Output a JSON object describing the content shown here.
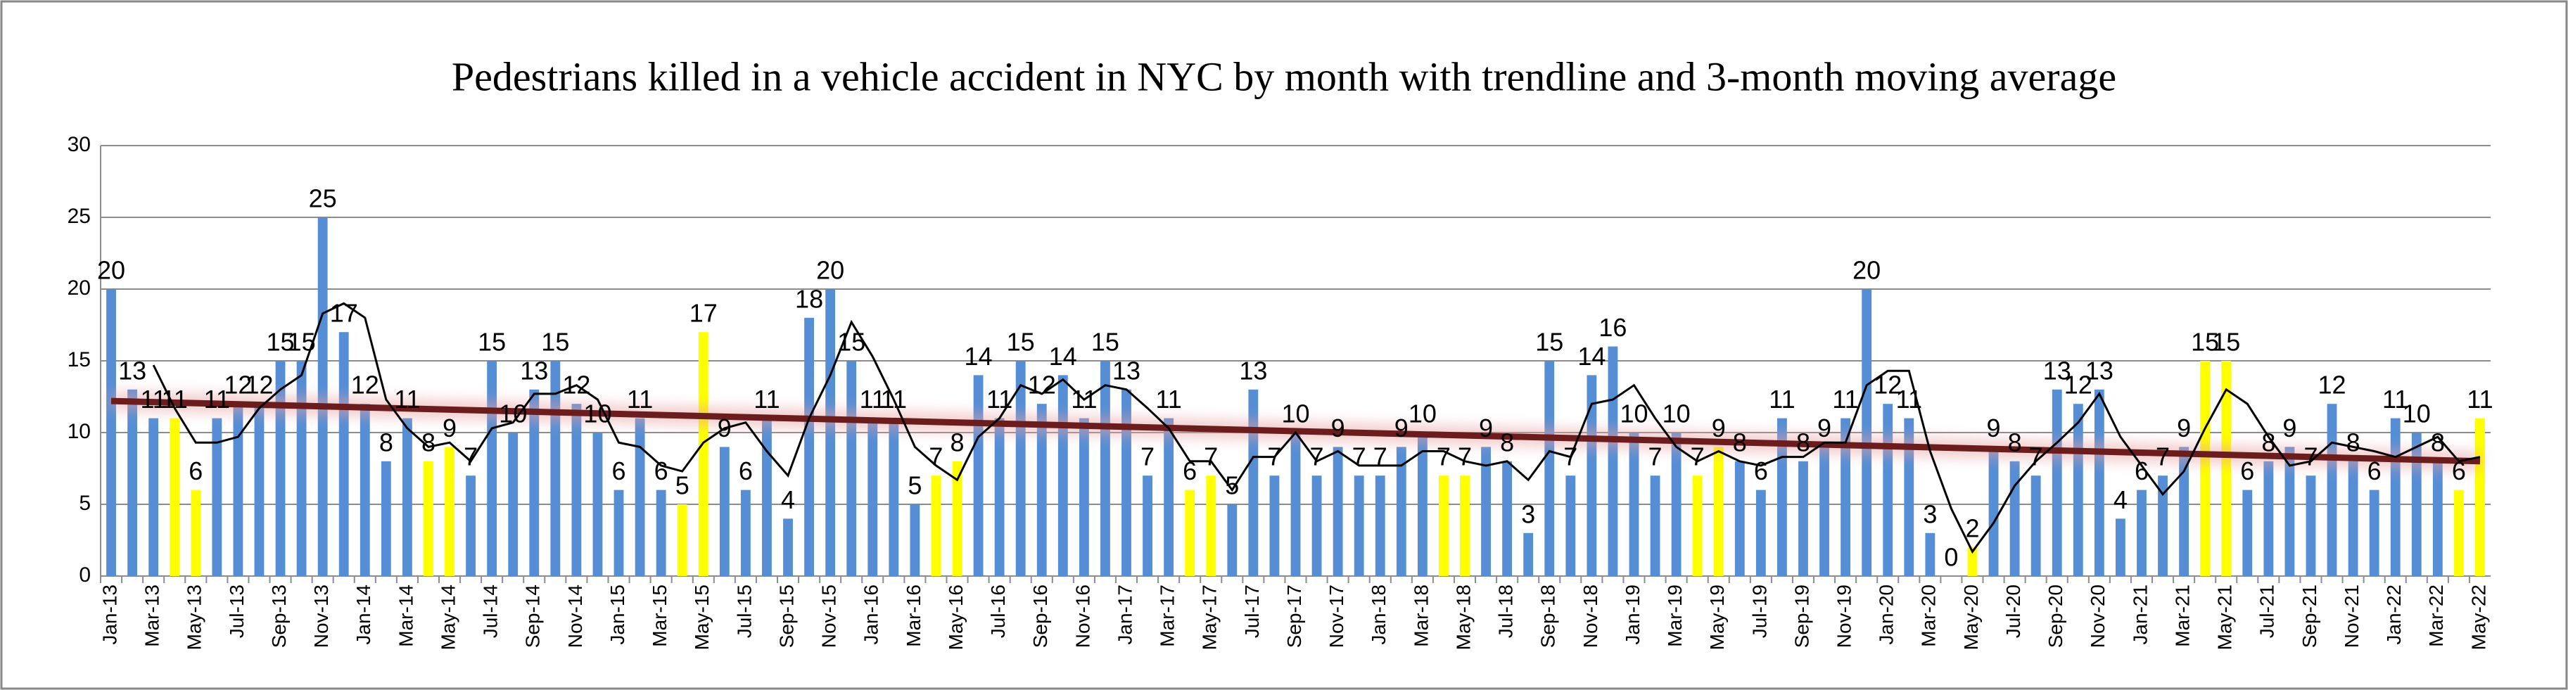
{
  "chart_data": {
    "type": "bar",
    "title": "Pedestrians killed in a vehicle accident  in NYC  by month with trendline and 3-month moving average",
    "categories": [
      "Jan-13",
      null,
      "Mar-13",
      null,
      "May-13",
      null,
      "Jul-13",
      null,
      "Sep-13",
      null,
      "Nov-13",
      null,
      "Jan-14",
      null,
      "Mar-14",
      null,
      "May-14",
      null,
      "Jul-14",
      null,
      "Sep-14",
      null,
      "Nov-14",
      null,
      "Jan-15",
      null,
      "Mar-15",
      null,
      "May-15",
      null,
      "Jul-15",
      null,
      "Sep-15",
      null,
      "Nov-15",
      null,
      "Jan-16",
      null,
      "Mar-16",
      null,
      "May-16",
      null,
      "Jul-16",
      null,
      "Sep-16",
      null,
      "Nov-16",
      null,
      "Jan-17",
      null,
      "Mar-17",
      null,
      "May-17",
      null,
      "Jul-17",
      null,
      "Sep-17",
      null,
      "Nov-17",
      null,
      "Jan-18",
      null,
      "Mar-18",
      null,
      "May-18",
      null,
      "Jul-18",
      null,
      "Sep-18",
      null,
      "Nov-18",
      null,
      "Jan-19",
      null,
      "Mar-19",
      null,
      "May-19",
      null,
      "Jul-19",
      null,
      "Sep-19",
      null,
      "Nov-19",
      null,
      "Jan-20",
      null,
      "Mar-20",
      null,
      "May-20",
      null,
      "Jul-20",
      null,
      "Sep-20",
      null,
      "Nov-20",
      null,
      "Jan-21",
      null,
      "Mar-21",
      null,
      "May-21",
      null,
      "Jul-21",
      null,
      "Sep-21",
      null,
      "Nov-21",
      null,
      "Jan-22",
      null,
      "Mar-22",
      null,
      "May-22"
    ],
    "values": [
      20,
      13,
      11,
      11,
      6,
      11,
      12,
      12,
      15,
      15,
      25,
      17,
      12,
      8,
      11,
      8,
      9,
      7,
      15,
      10,
      13,
      15,
      12,
      10,
      6,
      11,
      6,
      5,
      17,
      9,
      6,
      11,
      4,
      18,
      20,
      15,
      11,
      11,
      5,
      7,
      8,
      14,
      11,
      15,
      12,
      14,
      11,
      15,
      13,
      7,
      11,
      6,
      7,
      5,
      13,
      7,
      10,
      7,
      9,
      7,
      7,
      9,
      10,
      7,
      7,
      9,
      8,
      3,
      15,
      7,
      14,
      16,
      10,
      7,
      10,
      7,
      9,
      8,
      6,
      11,
      8,
      9,
      11,
      20,
      12,
      11,
      3,
      0,
      2,
      9,
      8,
      7,
      13,
      12,
      13,
      4,
      6,
      7,
      9,
      15,
      15,
      6,
      8,
      9,
      7,
      12,
      8,
      6,
      11,
      10,
      8,
      6,
      11
    ],
    "colors": [
      "#558ed5",
      "#558ed5",
      "#558ed5",
      "#ffff00",
      "#ffff00",
      "#558ed5",
      "#558ed5",
      "#558ed5",
      "#558ed5",
      "#558ed5",
      "#558ed5",
      "#558ed5",
      "#558ed5",
      "#558ed5",
      "#558ed5",
      "#ffff00",
      "#ffff00",
      "#558ed5",
      "#558ed5",
      "#558ed5",
      "#558ed5",
      "#558ed5",
      "#558ed5",
      "#558ed5",
      "#558ed5",
      "#558ed5",
      "#558ed5",
      "#ffff00",
      "#ffff00",
      "#558ed5",
      "#558ed5",
      "#558ed5",
      "#558ed5",
      "#558ed5",
      "#558ed5",
      "#558ed5",
      "#558ed5",
      "#558ed5",
      "#558ed5",
      "#ffff00",
      "#ffff00",
      "#558ed5",
      "#558ed5",
      "#558ed5",
      "#558ed5",
      "#558ed5",
      "#558ed5",
      "#558ed5",
      "#558ed5",
      "#558ed5",
      "#558ed5",
      "#ffff00",
      "#ffff00",
      "#558ed5",
      "#558ed5",
      "#558ed5",
      "#558ed5",
      "#558ed5",
      "#558ed5",
      "#558ed5",
      "#558ed5",
      "#558ed5",
      "#558ed5",
      "#ffff00",
      "#ffff00",
      "#558ed5",
      "#558ed5",
      "#558ed5",
      "#558ed5",
      "#558ed5",
      "#558ed5",
      "#558ed5",
      "#558ed5",
      "#558ed5",
      "#558ed5",
      "#ffff00",
      "#ffff00",
      "#558ed5",
      "#558ed5",
      "#558ed5",
      "#558ed5",
      "#558ed5",
      "#558ed5",
      "#558ed5",
      "#558ed5",
      "#558ed5",
      "#558ed5",
      "#ffff00",
      "#ffff00",
      "#558ed5",
      "#558ed5",
      "#558ed5",
      "#558ed5",
      "#558ed5",
      "#558ed5",
      "#558ed5",
      "#558ed5",
      "#558ed5",
      "#558ed5",
      "#ffff00",
      "#ffff00",
      "#558ed5",
      "#558ed5",
      "#558ed5",
      "#558ed5",
      "#558ed5",
      "#558ed5",
      "#558ed5",
      "#558ed5",
      "#558ed5",
      "#558ed5",
      "#ffff00",
      "#ffff00"
    ],
    "moving_average": {
      "color": "#000000",
      "values": [
        null,
        null,
        14.7,
        11.7,
        9.3,
        9.3,
        9.7,
        11.7,
        13,
        14,
        18.3,
        19,
        18,
        12.3,
        10.3,
        9,
        9.3,
        8,
        10.3,
        10.7,
        12.7,
        12.7,
        13.3,
        12.3,
        9.3,
        9,
        7.7,
        7.3,
        9.3,
        10.3,
        10.7,
        8.7,
        7,
        11,
        14,
        17.7,
        15.3,
        12.3,
        9,
        7.7,
        6.7,
        9.7,
        11,
        13.3,
        12.7,
        13.7,
        12.3,
        13.3,
        13,
        11.7,
        10.3,
        8,
        8,
        6,
        8.3,
        8.3,
        10,
        8,
        8.7,
        7.7,
        7.7,
        7.7,
        8.7,
        8.7,
        8,
        7.7,
        8,
        6.7,
        8.7,
        8.3,
        12,
        12.3,
        13.3,
        11,
        9,
        8,
        8.7,
        8,
        7.7,
        8.3,
        8.3,
        9.3,
        9.3,
        13.3,
        14.3,
        14.3,
        8.7,
        4.7,
        1.7,
        3.7,
        6.3,
        8,
        9.3,
        10.7,
        12.7,
        9.7,
        7.7,
        5.7,
        7.3,
        10.3,
        13,
        12,
        9.7,
        7.7,
        8,
        9.3,
        9,
        8.7,
        8.3,
        9,
        9.7,
        8,
        8.3
      ]
    },
    "trendline": {
      "color": "#6b1c1c",
      "values": [
        12.2,
        8.0
      ]
    },
    "ylim": [
      0,
      30
    ],
    "yticks": [
      0,
      5,
      10,
      15,
      20,
      25,
      30
    ],
    "grid": true
  }
}
